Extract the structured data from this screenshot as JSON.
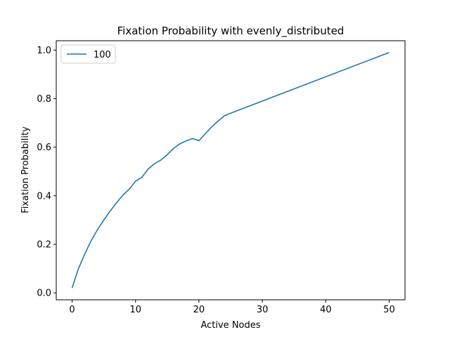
{
  "chart_data": {
    "type": "line",
    "title": "Fixation Probability with evenly_distributed",
    "xlabel": "Active Nodes",
    "ylabel": "Fixation Probability",
    "xlim": [
      -2.5,
      52.5
    ],
    "ylim": [
      -0.0285,
      1.0385
    ],
    "xticks": [
      0,
      10,
      20,
      30,
      40,
      50
    ],
    "xtick_labels": [
      "0",
      "10",
      "20",
      "30",
      "40",
      "50"
    ],
    "yticks": [
      0.0,
      0.2,
      0.4,
      0.6,
      0.8,
      1.0
    ],
    "ytick_labels": [
      "0.0",
      "0.2",
      "0.4",
      "0.6",
      "0.8",
      "1.0"
    ],
    "grid": false,
    "legend_position": "upper-left",
    "series": [
      {
        "name": "100",
        "color": "#1f77b4",
        "x": [
          0,
          1,
          2,
          3,
          4,
          5,
          6,
          7,
          8,
          9,
          10,
          11,
          12,
          13,
          14,
          15,
          16,
          17,
          18,
          19,
          20,
          21,
          22,
          23,
          24,
          25,
          50
        ],
        "y": [
          0.02,
          0.1,
          0.16,
          0.215,
          0.26,
          0.3,
          0.337,
          0.371,
          0.402,
          0.427,
          0.46,
          0.476,
          0.51,
          0.532,
          0.547,
          0.569,
          0.595,
          0.614,
          0.626,
          0.636,
          0.627,
          0.655,
          0.683,
          0.707,
          0.729,
          0.74,
          0.99
        ]
      }
    ]
  }
}
